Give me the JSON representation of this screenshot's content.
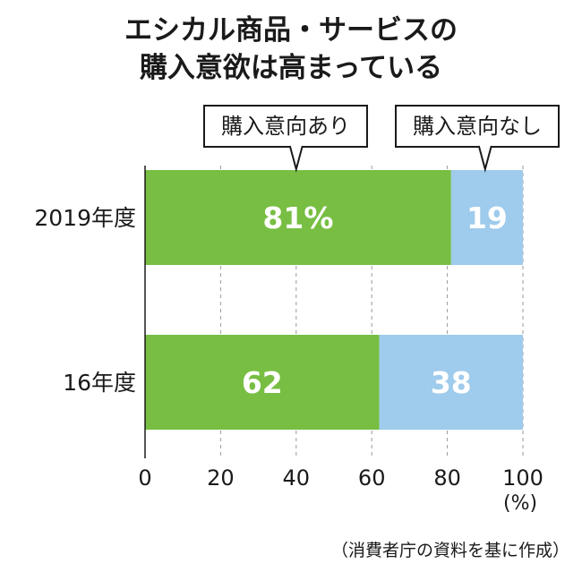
{
  "title_line1": "エシカル商品・サービスの",
  "title_line2": "購入意欲は高まっている",
  "source": "（消費者庁の資料を基に作成）",
  "chart_data": {
    "type": "bar",
    "orientation": "horizontal",
    "stacked": true,
    "categories": [
      "2019年度",
      "16年度"
    ],
    "series": [
      {
        "name": "購入意向あり",
        "values": [
          81,
          62
        ],
        "labels": [
          "81%",
          "62"
        ],
        "color": "#77be43"
      },
      {
        "name": "購入意向なし",
        "values": [
          19,
          38
        ],
        "labels": [
          "19",
          "38"
        ],
        "color": "#9fcbec"
      }
    ],
    "xlim": [
      0,
      100
    ],
    "xticks": [
      "0",
      "20",
      "40",
      "60",
      "80",
      "100"
    ],
    "xunit": "(%)",
    "grid": true
  }
}
